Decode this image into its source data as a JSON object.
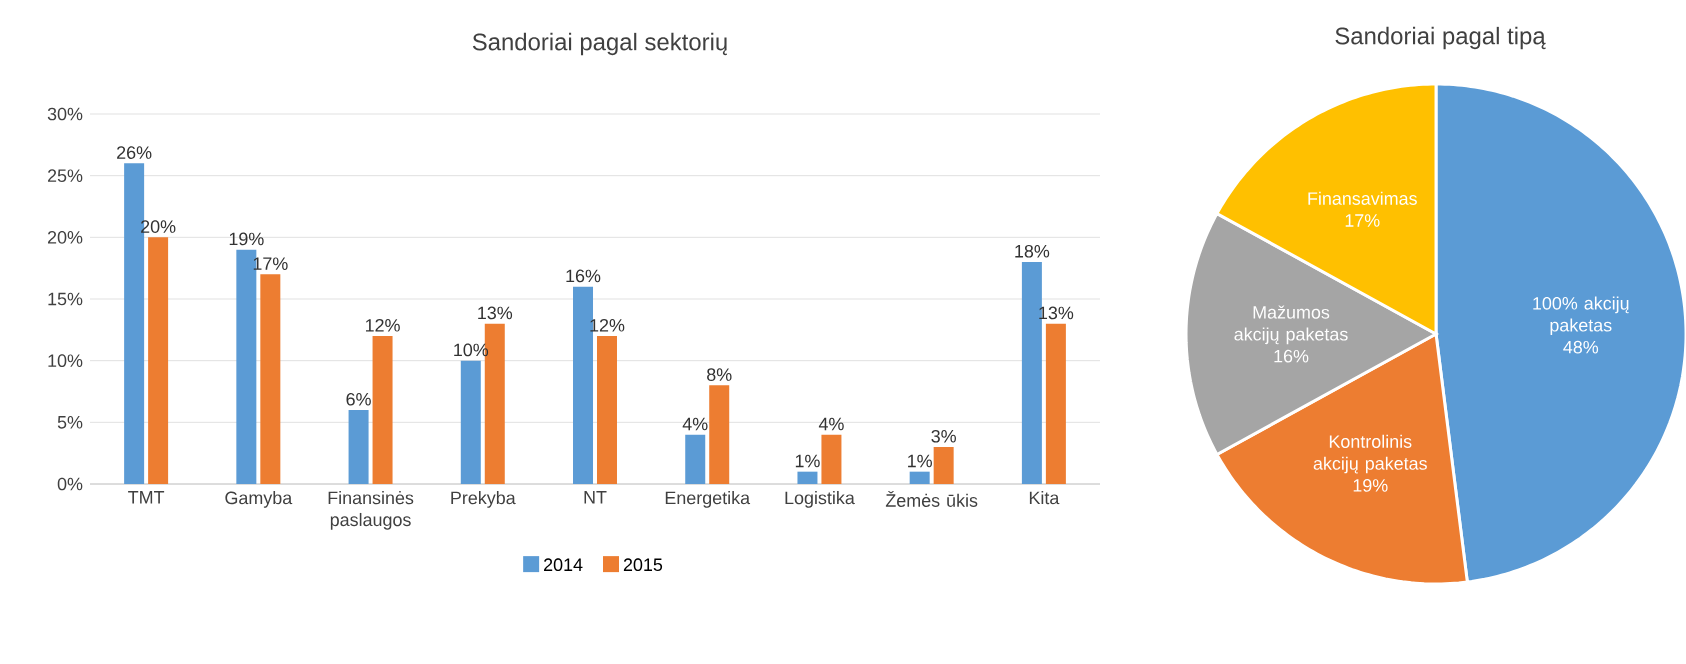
{
  "chart_data": [
    {
      "type": "bar",
      "title": "Sandoriai pagal sektorių",
      "categories": [
        "TMT",
        "Gamyba",
        "Finansinės paslaugos",
        "Prekyba",
        "NT",
        "Energetika",
        "Logistika",
        "Žemės ūkis",
        "Kita"
      ],
      "series": [
        {
          "name": "2014",
          "color": "#5b9bd5",
          "values": [
            26,
            19,
            6,
            10,
            16,
            4,
            1,
            1,
            18
          ],
          "value_labels": [
            "26%",
            "19%",
            "6%",
            "10%",
            "16%",
            "4%",
            "1%",
            "1%",
            "18%"
          ]
        },
        {
          "name": "2015",
          "color": "#ed7d31",
          "values": [
            20,
            17,
            12,
            13,
            12,
            8,
            4,
            3,
            13
          ],
          "value_labels": [
            "20%",
            "17%",
            "12%",
            "13%",
            "12%",
            "8%",
            "4%",
            "3%",
            "13%"
          ]
        }
      ],
      "ylim": [
        0,
        30
      ],
      "yticks": [
        {
          "value": 0,
          "label": "0%"
        },
        {
          "value": 5,
          "label": "5%"
        },
        {
          "value": 10,
          "label": "10%"
        },
        {
          "value": 15,
          "label": "15%"
        },
        {
          "value": 20,
          "label": "20%"
        },
        {
          "value": 25,
          "label": "25%"
        },
        {
          "value": 30,
          "label": "30%"
        }
      ],
      "grid": "y",
      "legend": "bottom"
    },
    {
      "type": "pie",
      "title": "Sandoriai pagal tipą",
      "categories": [
        "100% akcijų paketas",
        "Kontrolinis akcijų paketas",
        "Mažumos akcijų paketas",
        "Finansavimas"
      ],
      "values": [
        48,
        19,
        16,
        17
      ],
      "colors": [
        "#5b9bd5",
        "#ed7d31",
        "#a5a5a5",
        "#ffc000"
      ],
      "value_labels": [
        "48%",
        "19%",
        "16%",
        "17%"
      ]
    }
  ]
}
